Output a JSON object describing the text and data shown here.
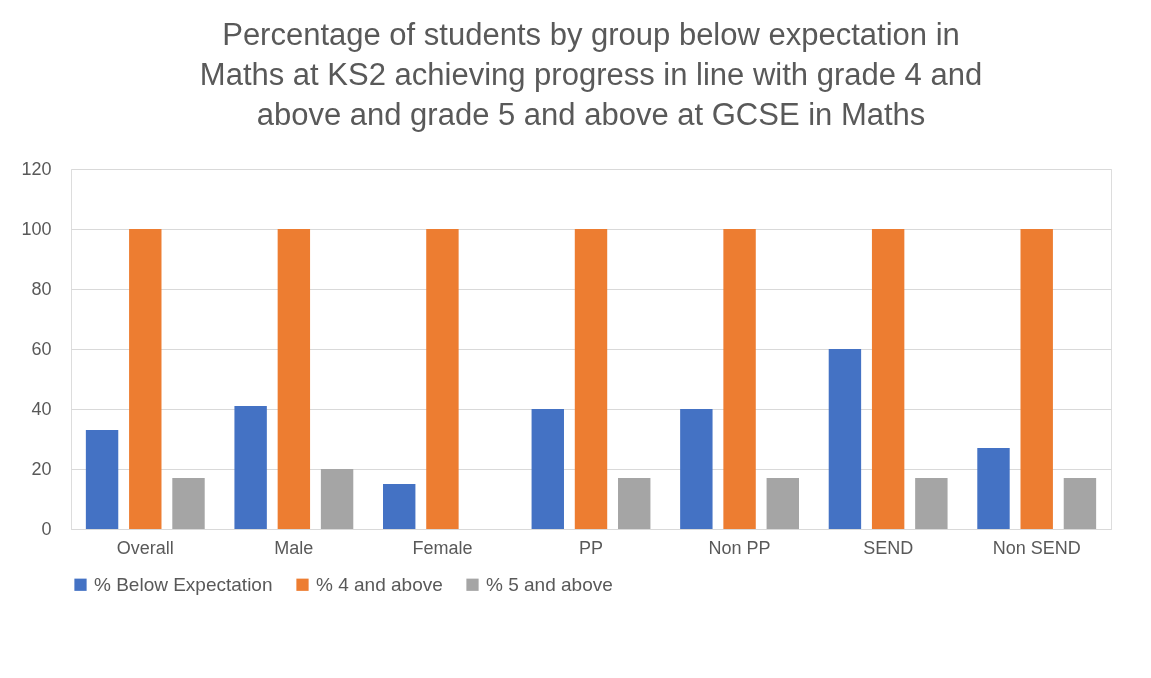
{
  "chart_data": {
    "type": "bar",
    "title": "Percentage of students by group below expectation in Maths at KS2 achieving progress in line with grade 4 and above and grade 5 and above at GCSE in Maths",
    "categories": [
      "Overall",
      "Male",
      "Female",
      "PP",
      "Non PP",
      "SEND",
      "Non SEND"
    ],
    "series": [
      {
        "name": "% Below Expectation",
        "color": "#4472c4",
        "values": [
          33,
          41,
          15,
          40,
          40,
          60,
          27
        ]
      },
      {
        "name": "% 4 and above",
        "color": "#ed7d31",
        "values": [
          100,
          100,
          100,
          100,
          100,
          100,
          100
        ]
      },
      {
        "name": "% 5 and above",
        "color": "#a5a5a5",
        "values": [
          17,
          20,
          0,
          17,
          17,
          17,
          17
        ]
      }
    ],
    "ylim": [
      0,
      120
    ],
    "yticks": [
      0,
      20,
      40,
      60,
      80,
      100,
      120
    ],
    "grid": "y",
    "legend": "bottom"
  }
}
